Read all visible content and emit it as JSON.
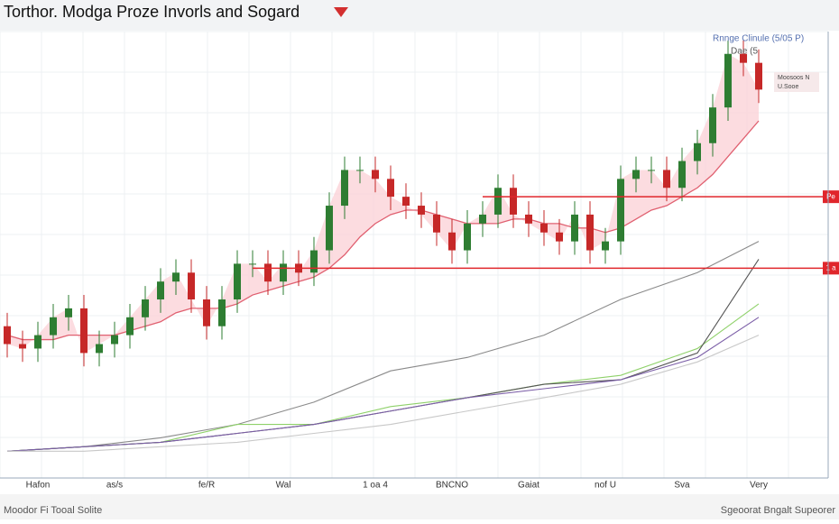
{
  "chart_data": {
    "type": "candlestick",
    "title": "Torthor. Modga Proze Invorls and Sogard",
    "legend": [
      "Rnnge Clinule (5/05 P)",
      "Dae (5"
    ],
    "legend_box": [
      "Moosoos N",
      "U.Sooe"
    ],
    "footer_left": "Moodor Fi Tooal Solite",
    "footer_right": "Sgeoorat Bngalt Supeorer",
    "categories": [
      null,
      null,
      "Hafon",
      null,
      null,
      null,
      null,
      "as/s",
      null,
      null,
      null,
      null,
      null,
      "fe/R",
      null,
      null,
      null,
      null,
      "Wal",
      null,
      null,
      null,
      null,
      null,
      "1 oa 4",
      null,
      null,
      null,
      null,
      "BNCNO",
      null,
      null,
      null,
      null,
      "Gaiat",
      null,
      null,
      null,
      null,
      "nof U",
      null,
      null,
      null,
      null,
      "Sva",
      null,
      null,
      null,
      null,
      "Very"
    ],
    "open": [
      34,
      30,
      29,
      32,
      36,
      38,
      28,
      30,
      32,
      36,
      40,
      44,
      46,
      40,
      34,
      40,
      48,
      48,
      44,
      48,
      46,
      51,
      61,
      69,
      69,
      67,
      63,
      61,
      59,
      55,
      51,
      57,
      59,
      65,
      59,
      57,
      55,
      53,
      59,
      51,
      53,
      67,
      69,
      69,
      65,
      71,
      75,
      83,
      95,
      93
    ],
    "high": [
      37,
      33,
      35,
      39,
      41,
      41,
      33,
      35,
      39,
      43,
      47,
      49,
      49,
      43,
      43,
      51,
      51,
      51,
      51,
      51,
      54,
      64,
      72,
      72,
      72,
      70,
      66,
      64,
      62,
      58,
      60,
      62,
      68,
      68,
      62,
      60,
      58,
      62,
      62,
      56,
      70,
      72,
      72,
      72,
      74,
      78,
      86,
      98,
      98,
      96
    ],
    "low": [
      27,
      26,
      26,
      29,
      33,
      25,
      25,
      27,
      29,
      33,
      37,
      41,
      37,
      31,
      31,
      37,
      45,
      41,
      41,
      43,
      43,
      48,
      58,
      66,
      64,
      60,
      58,
      56,
      52,
      48,
      48,
      54,
      56,
      56,
      54,
      52,
      50,
      50,
      48,
      48,
      50,
      64,
      66,
      62,
      62,
      68,
      72,
      80,
      90,
      84
    ],
    "close": [
      30,
      29,
      32,
      36,
      38,
      28,
      30,
      32,
      36,
      40,
      44,
      46,
      40,
      34,
      40,
      48,
      48,
      44,
      48,
      46,
      51,
      61,
      69,
      69,
      67,
      63,
      61,
      59,
      55,
      51,
      57,
      59,
      65,
      59,
      57,
      55,
      53,
      59,
      51,
      53,
      67,
      69,
      69,
      65,
      71,
      75,
      83,
      95,
      93,
      87
    ],
    "up_color": "#2e7d32",
    "down_color": "#c62828",
    "ma": {
      "color": "#e06070",
      "fill": "#fbd3d8",
      "values": [
        32,
        31,
        31,
        31,
        32,
        32,
        32,
        32,
        33,
        34,
        35,
        37,
        38,
        38,
        38,
        39,
        41,
        42,
        43,
        44,
        45,
        47,
        50,
        54,
        57,
        59,
        60,
        60,
        59,
        58,
        57,
        57,
        57,
        58,
        58,
        57,
        57,
        56,
        56,
        55,
        56,
        58,
        60,
        61,
        63,
        65,
        68,
        72,
        76,
        80
      ]
    },
    "line_x": [
      0,
      5,
      10,
      15,
      20,
      25,
      30,
      35,
      40,
      45,
      49
    ],
    "lines": [
      {
        "color": "#8a8a8a",
        "values": [
          6,
          7,
          9,
          12,
          17,
          24,
          27,
          32,
          40,
          46,
          53
        ]
      },
      {
        "color": "#8fd16a",
        "values": [
          6,
          7,
          8,
          12,
          12,
          16,
          18,
          21,
          23,
          29,
          39
        ]
      },
      {
        "color": "#555555",
        "values": [
          6,
          7,
          8,
          10,
          12,
          15,
          18,
          21,
          22,
          28,
          49
        ]
      },
      {
        "color": "#7b5ea7",
        "values": [
          6,
          7,
          8,
          10,
          12,
          15,
          18,
          20,
          22,
          27,
          36
        ]
      },
      {
        "color": "#c8c8c8",
        "values": [
          6,
          6,
          7,
          8,
          10,
          12,
          15,
          18,
          21,
          26,
          32
        ]
      }
    ],
    "levels": [
      {
        "value": 63,
        "label": "Pe",
        "start": 31
      },
      {
        "value": 47,
        "label": "1 a",
        "start": 16
      }
    ],
    "level_color": "#e0262b",
    "ylim": [
      0,
      100
    ],
    "grid": true
  }
}
